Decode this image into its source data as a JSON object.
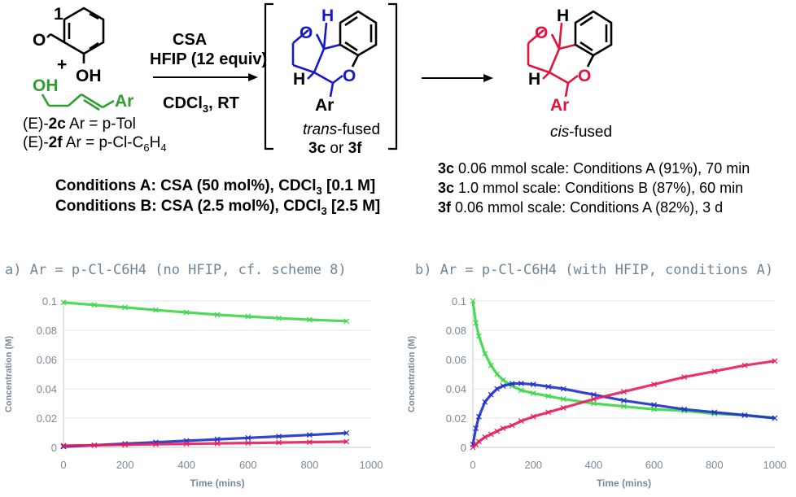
{
  "scheme": {
    "colors": {
      "green": "#2e9e2e",
      "blue": "#1818c8",
      "red": "#e3143c",
      "black": "#000000"
    },
    "aldehyde_label": "1",
    "aldehyde_O": "O",
    "aldehyde_OH": "OH",
    "plus": "+",
    "alkenol_OH": "OH",
    "alkenol_Ar": "Ar",
    "reagent_line1": "CSA",
    "reagent_line2": "HFIP (12 equiv)",
    "solvent": "CDCl",
    "solvent_sub": "3",
    "solvent_tail": ", RT",
    "sub2c_pre": "(E)-",
    "sub2c_bold": "2c",
    "sub2c_text": " Ar = p-Tol",
    "sub2f_pre": "(E)-",
    "sub2f_bold": "2f",
    "sub2f_text": " Ar = p-Cl-C",
    "sub2f_sub6": "6",
    "sub2f_H": "H",
    "sub2f_sub4": "4",
    "condA_label": "Conditions A:",
    "condA_text": " CSA (50 mol%), CDCl",
    "condA_sub": "3",
    "condA_tail": " [0.1 M]",
    "condB_label": "Conditions B:",
    "condB_text": " CSA (2.5 mol%), CDCl",
    "condB_sub": "3",
    "condB_tail": " [2.5 M]",
    "trans_atoms": {
      "O1": "O",
      "H": "H",
      "O2": "O",
      "H2": "H",
      "Ar": "Ar"
    },
    "trans_label_italic": "trans",
    "trans_label_rest": "-fused",
    "trans_cmpd_a": "3c",
    "trans_cmpd_or": " or ",
    "trans_cmpd_b": "3f",
    "cis_atoms": {
      "O1": "O",
      "H": "H",
      "O2": "O",
      "H2": "H",
      "Ar": "Ar"
    },
    "cis_label_italic": "cis",
    "cis_label_rest": "-fused",
    "results": [
      {
        "cmpd": "3c",
        "text": " 0.06 mmol scale: Conditions A (91%), 70 min"
      },
      {
        "cmpd": "3c",
        "text": " 1.0 mmol scale: Conditions B (87%), 60 min"
      },
      {
        "cmpd": "3f",
        "text": " 0.06 mmol scale: Conditions A (82%), 3 d"
      }
    ]
  },
  "chart_data": [
    {
      "type": "scatter",
      "title": "a) Ar = p-Cl-C6H4 (no HFIP, cf. scheme 8)",
      "xlabel": "Time (mins)",
      "ylabel": "Concentration (M)",
      "xlim": [
        0,
        1000
      ],
      "ylim": [
        0,
        0.1
      ],
      "xticks": [
        0,
        200,
        400,
        600,
        800,
        1000
      ],
      "yticks": [
        0,
        0.02,
        0.04,
        0.06,
        0.08,
        0.1
      ],
      "ytick_labels": [
        "0",
        "0.02",
        "0.04",
        "0.06",
        "0.08",
        "0.1"
      ],
      "grid": "horizontal",
      "series": [
        {
          "color": "#3dd648",
          "x": [
            0,
            100,
            200,
            300,
            400,
            500,
            600,
            700,
            800,
            920
          ],
          "y": [
            0.099,
            0.0973,
            0.0956,
            0.0938,
            0.0922,
            0.0906,
            0.0894,
            0.0882,
            0.0872,
            0.0862
          ]
        },
        {
          "color": "#1c2fc8",
          "x": [
            0,
            100,
            200,
            300,
            400,
            500,
            600,
            700,
            800,
            920
          ],
          "y": [
            0.0005,
            0.0015,
            0.0025,
            0.0035,
            0.0045,
            0.0055,
            0.0065,
            0.0075,
            0.0085,
            0.0098
          ]
        },
        {
          "color": "#e61e5a",
          "x": [
            0,
            100,
            200,
            300,
            400,
            500,
            600,
            700,
            800,
            920
          ],
          "y": [
            0.0012,
            0.0015,
            0.0018,
            0.0021,
            0.0024,
            0.0027,
            0.003,
            0.0033,
            0.0036,
            0.0039
          ]
        }
      ]
    },
    {
      "type": "scatter",
      "title": "b) Ar = p-Cl-C6H4 (with HFIP, conditions A)",
      "xlabel": "Time (mins)",
      "ylabel": "Concentration (M)",
      "xlim": [
        0,
        1000
      ],
      "ylim": [
        0,
        0.1
      ],
      "xticks": [
        0,
        200,
        400,
        600,
        800,
        1000
      ],
      "yticks": [
        0,
        0.02,
        0.04,
        0.06,
        0.08,
        0.1
      ],
      "ytick_labels": [
        "0",
        "0.02",
        "0.04",
        "0.06",
        "0.08",
        "0.1"
      ],
      "grid": "horizontal",
      "series": [
        {
          "color": "#3dd648",
          "x": [
            0,
            10,
            20,
            40,
            60,
            80,
            100,
            130,
            160,
            200,
            250,
            300,
            400,
            500,
            600,
            700,
            800,
            900,
            1000
          ],
          "y": [
            0.1,
            0.085,
            0.076,
            0.064,
            0.056,
            0.05,
            0.046,
            0.042,
            0.039,
            0.037,
            0.035,
            0.033,
            0.03,
            0.028,
            0.026,
            0.025,
            0.023,
            0.022,
            0.02
          ]
        },
        {
          "color": "#1c2fc8",
          "x": [
            0,
            10,
            20,
            40,
            60,
            80,
            100,
            130,
            160,
            200,
            250,
            300,
            400,
            500,
            600,
            700,
            800,
            900,
            1000
          ],
          "y": [
            0.002,
            0.013,
            0.021,
            0.031,
            0.036,
            0.04,
            0.042,
            0.0435,
            0.0437,
            0.043,
            0.0415,
            0.04,
            0.036,
            0.032,
            0.029,
            0.026,
            0.024,
            0.022,
            0.02
          ]
        },
        {
          "color": "#e61e5a",
          "x": [
            0,
            10,
            20,
            40,
            60,
            80,
            100,
            130,
            160,
            200,
            250,
            300,
            400,
            500,
            600,
            700,
            800,
            900,
            1000
          ],
          "y": [
            0,
            0.002,
            0.004,
            0.007,
            0.009,
            0.011,
            0.013,
            0.015,
            0.018,
            0.021,
            0.024,
            0.027,
            0.033,
            0.038,
            0.043,
            0.048,
            0.052,
            0.056,
            0.059
          ]
        }
      ]
    }
  ]
}
